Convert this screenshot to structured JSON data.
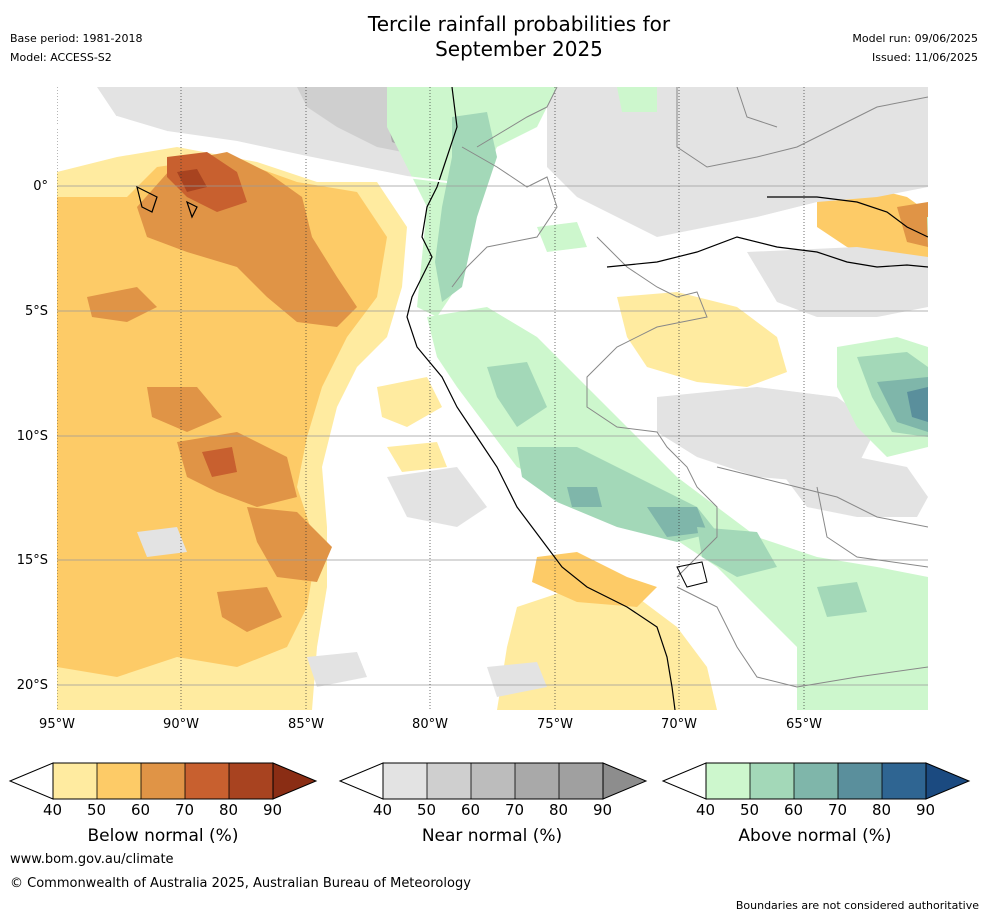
{
  "header": {
    "title_line1": "Tercile rainfall probabilities for",
    "title_line2": "September 2025",
    "base_period": "Base period: 1981-2018",
    "model": "Model: ACCESS-S2",
    "model_run": "Model run: 09/06/2025",
    "issued": "Issued: 11/06/2025"
  },
  "map": {
    "lat_labels": [
      "0°",
      "5°S",
      "10°S",
      "15°S",
      "20°S"
    ],
    "lon_labels": [
      "95°W",
      "90°W",
      "85°W",
      "80°W",
      "75°W",
      "70°W",
      "65°W"
    ],
    "colors": {
      "below": [
        "#ffeba0",
        "#fdcb67",
        "#e09446",
        "#c8602f",
        "#a84320",
        "#8a2d14"
      ],
      "near": [
        "#e3e3e3",
        "#cfcfcf",
        "#bcbcbc",
        "#a9a9a9",
        "#8d8d8d"
      ],
      "above": [
        "#cdf7cd",
        "#a3d8b8",
        "#7fb6aa",
        "#5a8f9c",
        "#2f6592",
        "#1b4a80"
      ]
    }
  },
  "legends": [
    {
      "title": "Below normal (%)",
      "ticks": [
        "40",
        "50",
        "60",
        "70",
        "80",
        "90"
      ]
    },
    {
      "title": "Near normal (%)",
      "ticks": [
        "40",
        "50",
        "60",
        "70",
        "80",
        "90"
      ]
    },
    {
      "title": "Above normal (%)",
      "ticks": [
        "40",
        "50",
        "60",
        "70",
        "80",
        "90"
      ]
    }
  ],
  "footer": {
    "website": "www.bom.gov.au/climate",
    "copyright": "© Commonwealth of Australia 2025, Australian Bureau of Meteorology",
    "disclaimer": "Boundaries are not considered authoritative"
  }
}
